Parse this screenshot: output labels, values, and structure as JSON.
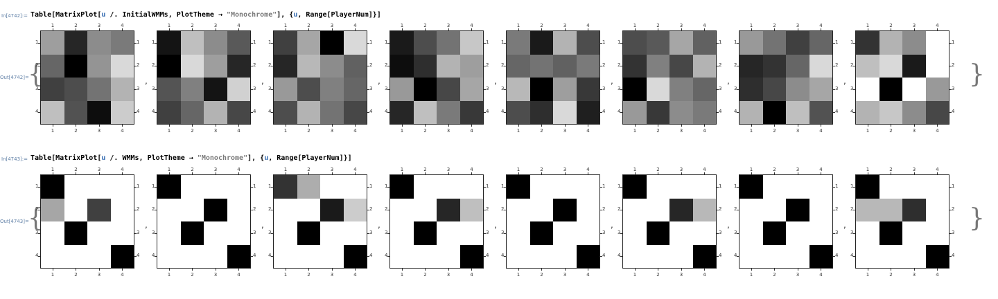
{
  "cells": [
    {
      "in_label": "In[4742]:=",
      "code_parts": [
        {
          "t": "Table[MatrixPlot[",
          "c": ""
        },
        {
          "t": "u",
          "c": "var"
        },
        {
          "t": " /. InitialWMMs, PlotTheme → ",
          "c": ""
        },
        {
          "t": "\"Monochrome\"",
          "c": "str"
        },
        {
          "t": "], {",
          "c": ""
        },
        {
          "t": "u",
          "c": "var"
        },
        {
          "t": ", Range[PlayerNum]}]",
          "c": ""
        }
      ],
      "out_label": "Out[4742]=",
      "tick_labels": [
        "1",
        "2",
        "3",
        "4"
      ],
      "matrices": [
        [
          [
            0.62,
            0.15,
            0.55,
            0.48
          ],
          [
            0.4,
            0.0,
            0.58,
            0.85
          ],
          [
            0.25,
            0.3,
            0.45,
            0.7
          ],
          [
            0.75,
            0.32,
            0.05,
            0.8
          ]
        ],
        [
          [
            0.08,
            0.75,
            0.55,
            0.35
          ],
          [
            0.0,
            0.85,
            0.62,
            0.15
          ],
          [
            0.33,
            0.5,
            0.08,
            0.82
          ],
          [
            0.25,
            0.4,
            0.7,
            0.28
          ]
        ],
        [
          [
            0.25,
            0.65,
            0.0,
            0.85
          ],
          [
            0.15,
            0.72,
            0.55,
            0.38
          ],
          [
            0.6,
            0.3,
            0.5,
            0.4
          ],
          [
            0.3,
            0.7,
            0.45,
            0.28
          ]
        ],
        [
          [
            0.1,
            0.3,
            0.45,
            0.78
          ],
          [
            0.05,
            0.18,
            0.7,
            0.62
          ],
          [
            0.6,
            0.0,
            0.28,
            0.65
          ],
          [
            0.15,
            0.75,
            0.48,
            0.22
          ]
        ],
        [
          [
            0.48,
            0.1,
            0.7,
            0.3
          ],
          [
            0.4,
            0.45,
            0.38,
            0.48
          ],
          [
            0.72,
            0.0,
            0.62,
            0.22
          ],
          [
            0.3,
            0.18,
            0.85,
            0.12
          ]
        ],
        [
          [
            0.3,
            0.35,
            0.65,
            0.38
          ],
          [
            0.2,
            0.5,
            0.28,
            0.7
          ],
          [
            0.0,
            0.85,
            0.5,
            0.4
          ],
          [
            0.6,
            0.22,
            0.55,
            0.48
          ]
        ],
        [
          [
            0.6,
            0.45,
            0.25,
            0.4
          ],
          [
            0.15,
            0.2,
            0.4,
            0.85
          ],
          [
            0.18,
            0.28,
            0.55,
            0.65
          ],
          [
            0.7,
            0.0,
            0.75,
            0.32
          ]
        ],
        [
          [
            0.2,
            0.7,
            0.55,
            1.0
          ],
          [
            0.75,
            0.85,
            0.1,
            1.0
          ],
          [
            1.0,
            0.0,
            1.0,
            0.6
          ],
          [
            0.7,
            0.78,
            0.55,
            0.28
          ]
        ]
      ]
    },
    {
      "in_label": "In[4743]:=",
      "code_parts": [
        {
          "t": "Table[MatrixPlot[",
          "c": ""
        },
        {
          "t": "u",
          "c": "var"
        },
        {
          "t": " /. WMMs, PlotTheme → ",
          "c": ""
        },
        {
          "t": "\"Monochrome\"",
          "c": "str"
        },
        {
          "t": "], {",
          "c": ""
        },
        {
          "t": "u",
          "c": "var"
        },
        {
          "t": ", Range[PlayerNum]}]",
          "c": ""
        }
      ],
      "out_label": "Out[4743]=",
      "tick_labels": [
        "1",
        "2",
        "3",
        "4"
      ],
      "matrices": [
        [
          [
            0,
            1,
            1,
            1
          ],
          [
            0.65,
            1,
            0.25,
            1
          ],
          [
            1,
            0,
            1,
            1
          ],
          [
            1,
            1,
            1,
            0
          ]
        ],
        [
          [
            0,
            1,
            1,
            1
          ],
          [
            1,
            1,
            0,
            1
          ],
          [
            1,
            0,
            1,
            1
          ],
          [
            1,
            1,
            1,
            0
          ]
        ],
        [
          [
            0.2,
            0.68,
            1,
            1
          ],
          [
            1,
            1,
            0.1,
            0.8
          ],
          [
            1,
            0,
            1,
            1
          ],
          [
            1,
            1,
            1,
            0
          ]
        ],
        [
          [
            0,
            1,
            1,
            1
          ],
          [
            1,
            1,
            0.15,
            0.75
          ],
          [
            1,
            0,
            1,
            1
          ],
          [
            1,
            1,
            1,
            0
          ]
        ],
        [
          [
            0,
            1,
            1,
            1
          ],
          [
            1,
            1,
            0,
            1
          ],
          [
            1,
            0,
            1,
            1
          ],
          [
            1,
            1,
            1,
            0
          ]
        ],
        [
          [
            0,
            1,
            1,
            1
          ],
          [
            1,
            1,
            0.15,
            0.72
          ],
          [
            1,
            0,
            1,
            1
          ],
          [
            1,
            1,
            1,
            0
          ]
        ],
        [
          [
            0,
            1,
            1,
            1
          ],
          [
            1,
            1,
            0,
            1
          ],
          [
            1,
            0,
            1,
            1
          ],
          [
            1,
            1,
            1,
            0
          ]
        ],
        [
          [
            0,
            1,
            1,
            1
          ],
          [
            0.72,
            0.72,
            0.18,
            1
          ],
          [
            1,
            0,
            1,
            1
          ],
          [
            1,
            1,
            1,
            0
          ]
        ]
      ]
    }
  ],
  "separator": ","
}
